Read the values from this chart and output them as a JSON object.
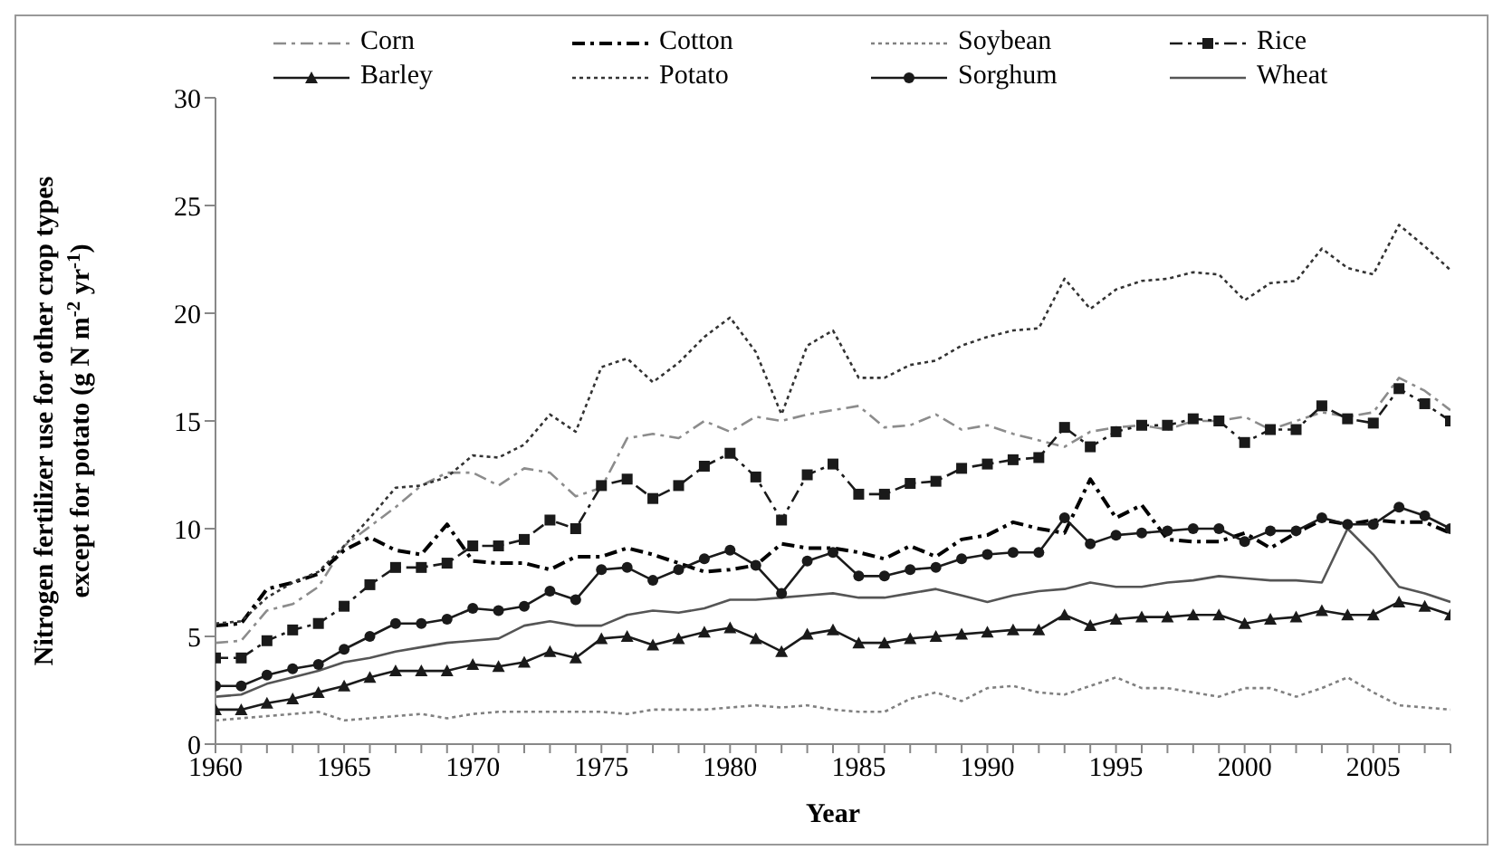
{
  "chart_data": {
    "type": "line",
    "xlabel": "Year",
    "ylabel": "Nitrogen fertilizer  use for other crop types except for potato (g N m$^{-2}$ yr$^{-1}$)",
    "x": [
      1960,
      1961,
      1962,
      1963,
      1964,
      1965,
      1966,
      1967,
      1968,
      1969,
      1970,
      1971,
      1972,
      1973,
      1974,
      1975,
      1976,
      1977,
      1978,
      1979,
      1980,
      1981,
      1982,
      1983,
      1984,
      1985,
      1986,
      1987,
      1988,
      1989,
      1990,
      1991,
      1992,
      1993,
      1994,
      1995,
      1996,
      1997,
      1998,
      1999,
      2000,
      2001,
      2002,
      2003,
      2004,
      2005,
      2006,
      2007,
      2008
    ],
    "xlim": [
      1960,
      2008
    ],
    "xticks": [
      1960,
      {
        "value": 1961,
        "label": null
      },
      {
        "value": 1962,
        "label": null
      },
      {
        "value": 1963,
        "label": null
      },
      {
        "value": 1964,
        "label": null
      },
      1965,
      {
        "value": 1966,
        "label": null
      },
      {
        "value": 1967,
        "label": null
      },
      {
        "value": 1968,
        "label": null
      },
      {
        "value": 1969,
        "label": null
      },
      1970,
      {
        "value": 1971,
        "label": null
      },
      {
        "value": 1972,
        "label": null
      },
      {
        "value": 1973,
        "label": null
      },
      {
        "value": 1974,
        "label": null
      },
      1975,
      {
        "value": 1976,
        "label": null
      },
      {
        "value": 1977,
        "label": null
      },
      {
        "value": 1978,
        "label": null
      },
      {
        "value": 1979,
        "label": null
      },
      1980,
      {
        "value": 1981,
        "label": null
      },
      {
        "value": 1982,
        "label": null
      },
      {
        "value": 1983,
        "label": null
      },
      {
        "value": 1984,
        "label": null
      },
      1985,
      {
        "value": 1986,
        "label": null
      },
      {
        "value": 1987,
        "label": null
      },
      {
        "value": 1988,
        "label": null
      },
      {
        "value": 1989,
        "label": null
      },
      1990,
      {
        "value": 1991,
        "label": null
      },
      {
        "value": 1992,
        "label": null
      },
      {
        "value": 1993,
        "label": null
      },
      {
        "value": 1994,
        "label": null
      },
      1995,
      {
        "value": 1996,
        "label": null
      },
      {
        "value": 1997,
        "label": null
      },
      {
        "value": 1998,
        "label": null
      },
      {
        "value": 1999,
        "label": null
      },
      2000,
      {
        "value": 2001,
        "label": null
      },
      {
        "value": 2002,
        "label": null
      },
      {
        "value": 2003,
        "label": null
      },
      {
        "value": 2004,
        "label": null
      },
      2005,
      {
        "value": 2006,
        "label": null
      },
      {
        "value": 2007,
        "label": null
      },
      {
        "value": 2008,
        "label": null
      }
    ],
    "ylim": [
      0,
      30
    ],
    "yticks": [
      0,
      5,
      10,
      15,
      20,
      25,
      30
    ],
    "grid": false,
    "legend": "top",
    "series": [
      {
        "name": "Corn",
        "color": "#8c8c8c",
        "line_style": "dashed",
        "marker": "none",
        "values": [
          4.7,
          4.8,
          6.2,
          6.5,
          7.3,
          9.2,
          10.1,
          11.0,
          12.0,
          12.6,
          12.6,
          12.0,
          12.8,
          12.6,
          11.5,
          11.9,
          14.2,
          14.4,
          14.2,
          15.0,
          14.5,
          15.2,
          15.0,
          15.3,
          15.5,
          15.7,
          14.7,
          14.8,
          15.3,
          14.6,
          14.8,
          14.4,
          14.1,
          13.8,
          14.5,
          14.7,
          14.8,
          14.6,
          15.0,
          15.0,
          15.2,
          14.6,
          15.0,
          15.4,
          15.2,
          15.4,
          17.0,
          16.4,
          15.5
        ]
      },
      {
        "name": "Cotton",
        "color": "#000000",
        "line_style": "dashed",
        "marker": "none",
        "values": [
          5.5,
          5.6,
          7.2,
          7.5,
          7.9,
          9.0,
          9.6,
          9.0,
          8.8,
          10.2,
          8.5,
          8.4,
          8.4,
          8.1,
          8.7,
          8.7,
          9.1,
          8.8,
          8.4,
          8.0,
          8.1,
          8.3,
          9.3,
          9.1,
          9.1,
          8.9,
          8.6,
          9.2,
          8.7,
          9.5,
          9.7,
          10.3,
          10.0,
          9.8,
          12.3,
          10.5,
          11.1,
          9.5,
          9.4,
          9.4,
          9.8,
          9.1,
          9.8,
          10.4,
          10.2,
          10.4,
          10.3,
          10.3,
          9.8
        ]
      },
      {
        "name": "Soybean",
        "color": "#808080",
        "line_style": "dotted",
        "marker": "none",
        "values": [
          1.1,
          1.2,
          1.3,
          1.4,
          1.5,
          1.1,
          1.2,
          1.3,
          1.4,
          1.2,
          1.4,
          1.5,
          1.5,
          1.5,
          1.5,
          1.5,
          1.4,
          1.6,
          1.6,
          1.6,
          1.7,
          1.8,
          1.7,
          1.8,
          1.6,
          1.5,
          1.5,
          2.1,
          2.4,
          2.0,
          2.6,
          2.7,
          2.4,
          2.3,
          2.7,
          3.1,
          2.6,
          2.6,
          2.4,
          2.2,
          2.6,
          2.6,
          2.2,
          2.6,
          3.1,
          2.4,
          1.8,
          1.7,
          1.6
        ]
      },
      {
        "name": "Rice",
        "color": "#1a1a1a",
        "line_style": "dashed",
        "marker": "square",
        "values": [
          4.0,
          4.0,
          4.8,
          5.3,
          5.6,
          6.4,
          7.4,
          8.2,
          8.2,
          8.4,
          9.2,
          9.2,
          9.5,
          10.4,
          10.0,
          12.0,
          12.3,
          11.4,
          12.0,
          12.9,
          13.5,
          12.4,
          10.4,
          12.5,
          13.0,
          11.6,
          11.6,
          12.1,
          12.2,
          12.8,
          13.0,
          13.2,
          13.3,
          14.7,
          13.8,
          14.5,
          14.8,
          14.8,
          15.1,
          15.0,
          14.0,
          14.6,
          14.6,
          15.7,
          15.1,
          14.9,
          16.5,
          15.8,
          15.0
        ]
      },
      {
        "name": "Barley",
        "color": "#1a1a1a",
        "line_style": "solid",
        "marker": "triangle",
        "values": [
          1.6,
          1.6,
          1.9,
          2.1,
          2.4,
          2.7,
          3.1,
          3.4,
          3.4,
          3.4,
          3.7,
          3.6,
          3.8,
          4.3,
          4.0,
          4.9,
          5.0,
          4.6,
          4.9,
          5.2,
          5.4,
          4.9,
          4.3,
          5.1,
          5.3,
          4.7,
          4.7,
          4.9,
          5.0,
          5.1,
          5.2,
          5.3,
          5.3,
          6.0,
          5.5,
          5.8,
          5.9,
          5.9,
          6.0,
          6.0,
          5.6,
          5.8,
          5.9,
          6.2,
          6.0,
          6.0,
          6.6,
          6.4,
          6.0
        ]
      },
      {
        "name": "Potato",
        "color": "#333333",
        "line_style": "dotted",
        "marker": "none",
        "values": [
          5.6,
          5.7,
          6.8,
          7.5,
          8.0,
          9.2,
          10.5,
          11.9,
          12.0,
          12.4,
          13.4,
          13.3,
          13.9,
          15.3,
          14.5,
          17.5,
          17.9,
          16.8,
          17.7,
          18.9,
          19.8,
          18.2,
          15.3,
          18.5,
          19.2,
          17.0,
          17.0,
          17.6,
          17.8,
          18.5,
          18.9,
          19.2,
          19.3,
          21.6,
          20.2,
          21.1,
          21.5,
          21.6,
          21.9,
          21.8,
          20.6,
          21.4,
          21.5,
          23.0,
          22.1,
          21.8,
          24.1,
          23.1,
          22.0
        ]
      },
      {
        "name": "Sorghum",
        "color": "#1a1a1a",
        "line_style": "solid",
        "marker": "circle",
        "values": [
          2.7,
          2.7,
          3.2,
          3.5,
          3.7,
          4.4,
          5.0,
          5.6,
          5.6,
          5.8,
          6.3,
          6.2,
          6.4,
          7.1,
          6.7,
          8.1,
          8.2,
          7.6,
          8.1,
          8.6,
          9.0,
          8.3,
          7.0,
          8.5,
          8.9,
          7.8,
          7.8,
          8.1,
          8.2,
          8.6,
          8.8,
          8.9,
          8.9,
          10.5,
          9.3,
          9.7,
          9.8,
          9.9,
          10.0,
          10.0,
          9.4,
          9.9,
          9.9,
          10.5,
          10.2,
          10.2,
          11.0,
          10.6,
          10.0
        ]
      },
      {
        "name": "Wheat",
        "color": "#555555",
        "line_style": "solid",
        "marker": "none",
        "values": [
          2.2,
          2.3,
          2.8,
          3.1,
          3.4,
          3.8,
          4.0,
          4.3,
          4.5,
          4.7,
          4.8,
          4.9,
          5.5,
          5.7,
          5.5,
          5.5,
          6.0,
          6.2,
          6.1,
          6.3,
          6.7,
          6.7,
          6.8,
          6.9,
          7.0,
          6.8,
          6.8,
          7.0,
          7.2,
          6.9,
          6.6,
          6.9,
          7.1,
          7.2,
          7.5,
          7.3,
          7.3,
          7.5,
          7.6,
          7.8,
          7.7,
          7.6,
          7.6,
          7.5,
          10.0,
          8.8,
          7.3,
          7.0,
          6.6
        ]
      }
    ]
  }
}
